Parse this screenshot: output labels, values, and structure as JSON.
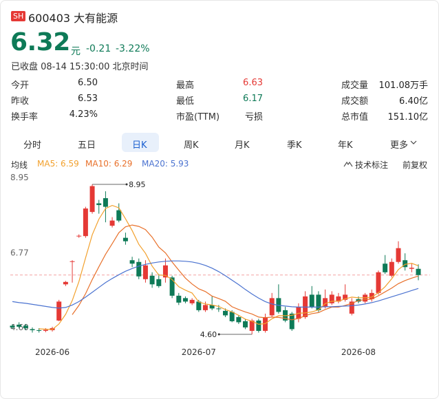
{
  "header": {
    "market": "SH",
    "name": "600403 大有能源",
    "price": "6.32",
    "unit": "元",
    "change": "-0.21",
    "change_pct": "-3.22%",
    "status": "已收盘 08-14 15:30:00 北京时间"
  },
  "stats": [
    [
      {
        "label": "今开",
        "value": "6.50"
      },
      {
        "label": "最高",
        "value": "6.63",
        "color": "#e53935"
      },
      {
        "label": "成交量",
        "value": "101.08万手"
      }
    ],
    [
      {
        "label": "昨收",
        "value": "6.53"
      },
      {
        "label": "最低",
        "value": "6.17",
        "color": "#0e7a57"
      },
      {
        "label": "成交额",
        "value": "6.40亿"
      }
    ],
    [
      {
        "label": "换手率",
        "value": "4.23%"
      },
      {
        "label": "市盈(TTM)",
        "value": "亏损"
      },
      {
        "label": "总市值",
        "value": "151.10亿"
      }
    ]
  ],
  "tabs": [
    "分时",
    "五日",
    "日K",
    "周K",
    "月K",
    "季K",
    "年K",
    "更多"
  ],
  "selected_tab": 2,
  "ma_title": "均线",
  "tools": [
    "技术标注",
    "前复权"
  ],
  "chart_data": {
    "type": "candlestick",
    "categories": [
      null,
      null,
      null,
      null,
      null,
      null,
      "2026-06",
      null,
      null,
      null,
      null,
      null,
      null,
      null,
      null,
      null,
      null,
      null,
      null,
      null,
      null,
      null,
      null,
      null,
      null,
      null,
      null,
      null,
      "2026-07",
      null,
      null,
      null,
      null,
      null,
      null,
      null,
      null,
      null,
      null,
      null,
      null,
      null,
      null,
      null,
      null,
      null,
      null,
      null,
      null,
      null,
      null,
      null,
      "2026-08",
      null,
      null,
      null,
      null,
      null,
      null,
      null,
      null,
      null
    ],
    "open": [
      4.85,
      4.88,
      4.85,
      4.75,
      4.72,
      4.7,
      4.72,
      5.0,
      6.05,
      6.7,
      7.45,
      7.45,
      8.15,
      8.4,
      8.55,
      7.75,
      8.2,
      7.4,
      6.75,
      6.7,
      6.2,
      6.3,
      6.2,
      6.25,
      6.25,
      5.72,
      5.65,
      5.5,
      5.55,
      5.3,
      5.45,
      5.35,
      5.28,
      5.25,
      5.1,
      4.98,
      4.7,
      5.0,
      4.7,
      5.15,
      5.65,
      5.3,
      5.2,
      5.05,
      5.1,
      5.75,
      5.75,
      5.4,
      5.5,
      5.55,
      5.6,
      5.2,
      5.62,
      5.55,
      5.62,
      5.8,
      6.65,
      6.3,
      6.7,
      6.75,
      6.5,
      6.5
    ],
    "high": [
      4.9,
      4.95,
      4.9,
      4.8,
      4.78,
      4.78,
      4.82,
      5.6,
      6.15,
      6.75,
      7.5,
      8.3,
      8.95,
      8.5,
      8.75,
      8.0,
      8.4,
      7.55,
      6.85,
      6.8,
      6.75,
      6.4,
      6.35,
      6.8,
      6.3,
      5.8,
      5.7,
      5.65,
      5.6,
      5.55,
      5.7,
      5.45,
      5.35,
      5.3,
      5.15,
      5.05,
      5.05,
      5.05,
      5.2,
      5.8,
      6.05,
      5.4,
      5.25,
      5.5,
      5.85,
      6.0,
      5.85,
      5.9,
      5.85,
      5.8,
      6.05,
      5.65,
      5.7,
      5.8,
      5.9,
      6.45,
      6.9,
      6.8,
      7.3,
      6.95,
      6.65,
      6.63
    ],
    "low": [
      4.75,
      4.78,
      4.72,
      4.65,
      4.65,
      4.66,
      4.68,
      4.98,
      6.0,
      6.1,
      7.4,
      7.4,
      8.1,
      8.1,
      7.85,
      7.7,
      7.85,
      7.2,
      6.55,
      6.2,
      6.1,
      5.95,
      5.95,
      6.1,
      5.65,
      5.45,
      5.5,
      5.45,
      5.25,
      5.25,
      5.3,
      5.25,
      5.1,
      4.95,
      4.9,
      4.75,
      4.6,
      4.65,
      4.65,
      5.1,
      5.2,
      4.95,
      4.7,
      4.95,
      5.05,
      5.35,
      5.25,
      5.35,
      5.45,
      5.5,
      5.55,
      5.15,
      5.5,
      5.5,
      5.55,
      5.75,
      6.35,
      6.25,
      6.65,
      6.45,
      6.4,
      6.17
    ],
    "close": [
      4.8,
      4.82,
      4.78,
      4.72,
      4.7,
      4.73,
      4.78,
      5.55,
      6.12,
      6.72,
      7.46,
      8.25,
      8.9,
      8.35,
      8.3,
      7.9,
      7.9,
      7.3,
      6.65,
      6.28,
      6.6,
      6.05,
      6.0,
      6.6,
      5.72,
      5.52,
      5.55,
      5.6,
      5.3,
      5.45,
      5.35,
      5.33,
      5.15,
      4.98,
      4.95,
      4.8,
      5.0,
      4.7,
      5.1,
      5.65,
      5.25,
      5.0,
      4.75,
      5.4,
      5.7,
      5.4,
      5.3,
      5.65,
      5.75,
      5.7,
      5.75,
      5.55,
      5.55,
      5.75,
      5.8,
      6.4,
      6.4,
      6.7,
      7.1,
      6.55,
      6.53,
      6.32
    ],
    "up_color": "#e53935",
    "down_color": "#0e7a57",
    "series": [
      {
        "name": "MA5",
        "legend": "MA5: 6.59",
        "color": "#f2a02c",
        "values": [
          null,
          null,
          null,
          null,
          4.76,
          4.75,
          4.74,
          4.9,
          5.18,
          5.58,
          6.13,
          6.82,
          7.49,
          7.94,
          8.25,
          8.34,
          8.27,
          7.95,
          7.61,
          7.21,
          6.95,
          6.58,
          6.32,
          6.31,
          6.19,
          5.98,
          5.88,
          5.8,
          5.54,
          5.48,
          5.45,
          5.41,
          5.32,
          5.25,
          5.15,
          5.04,
          4.98,
          4.89,
          4.91,
          5.05,
          5.14,
          5.14,
          5.15,
          5.21,
          5.22,
          5.25,
          5.31,
          5.49,
          5.56,
          5.56,
          5.63,
          5.68,
          5.66,
          5.66,
          5.68,
          5.81,
          5.98,
          6.21,
          6.48,
          6.63,
          6.66,
          6.59
        ]
      },
      {
        "name": "MA10",
        "legend": "MA10: 6.29",
        "color": "#e8702a",
        "values": [
          null,
          null,
          null,
          null,
          null,
          null,
          null,
          null,
          null,
          5.17,
          5.44,
          5.78,
          6.19,
          6.56,
          6.92,
          7.23,
          7.55,
          7.72,
          7.77,
          7.73,
          7.64,
          7.42,
          7.13,
          6.96,
          6.7,
          6.46,
          6.23,
          6.06,
          5.92,
          5.84,
          5.71,
          5.64,
          5.56,
          5.4,
          5.32,
          5.25,
          5.19,
          5.1,
          5.08,
          5.1,
          5.09,
          5.06,
          5.02,
          5.06,
          5.14,
          5.2,
          5.23,
          5.32,
          5.39,
          5.39,
          5.44,
          5.5,
          5.58,
          5.61,
          5.62,
          5.72,
          5.83,
          5.94,
          6.07,
          6.16,
          6.23,
          6.29
        ]
      },
      {
        "name": "MA20",
        "legend": "MA20: 5.93",
        "color": "#4a72d0",
        "values": [
          5.55,
          5.52,
          5.5,
          5.47,
          5.44,
          5.41,
          5.38,
          5.36,
          5.38,
          5.45,
          5.55,
          5.68,
          5.82,
          5.96,
          6.1,
          6.22,
          6.33,
          6.43,
          6.51,
          6.58,
          6.63,
          6.67,
          6.7,
          6.72,
          6.73,
          6.73,
          6.72,
          6.7,
          6.66,
          6.6,
          6.52,
          6.42,
          6.3,
          6.17,
          6.04,
          5.9,
          5.77,
          5.65,
          5.55,
          5.48,
          5.44,
          5.42,
          5.4,
          5.39,
          5.39,
          5.39,
          5.39,
          5.4,
          5.4,
          5.41,
          5.42,
          5.43,
          5.45,
          5.48,
          5.52,
          5.57,
          5.63,
          5.69,
          5.75,
          5.81,
          5.87,
          5.93
        ]
      }
    ],
    "ylim": [
      4.4,
      9.15
    ],
    "yticks": [
      8.95,
      6.77,
      {
        "value": 4.6,
        "label": "4.60"
      }
    ],
    "grid": false,
    "annotations": [
      {
        "label": "8.95",
        "value": 8.95,
        "field": "high"
      },
      {
        "label": "4.60",
        "value": 4.6,
        "field": "low"
      }
    ]
  }
}
